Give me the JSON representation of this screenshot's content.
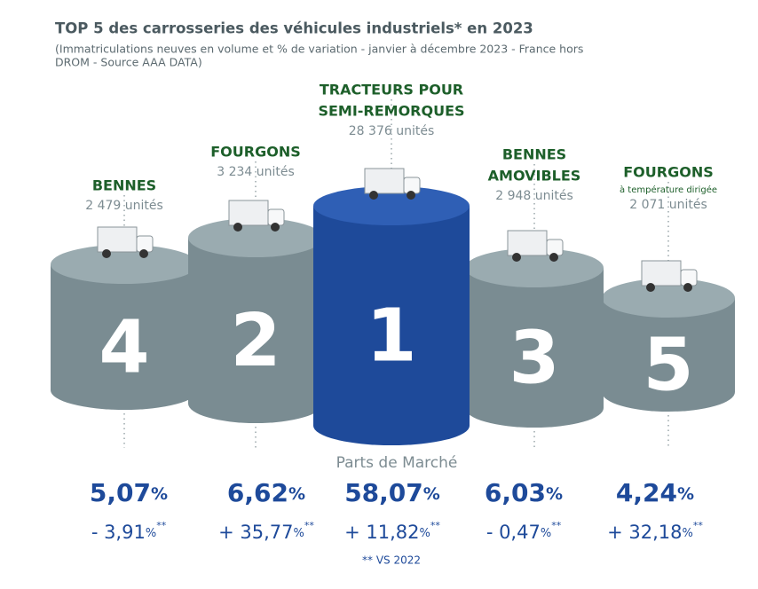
{
  "title": "TOP 5 des carrosseries des véhicules industriels* en 2023",
  "subtitle_lines": [
    "(Immatriculations neuves en volume et % de variation - janvier à décembre 2023 - France hors",
    "DROM - Source AAA DATA)"
  ],
  "podiums": [
    {
      "rank": "4",
      "name_lines": [
        "BENNES"
      ],
      "units": "2 479 unités",
      "share": "5,07",
      "share_unit": "%",
      "change": "- 3,91",
      "change_unit": "%",
      "change_mark": "**"
    },
    {
      "rank": "2",
      "name_lines": [
        "FOURGONS"
      ],
      "units": "3 234 unités",
      "share": "6,62",
      "share_unit": "%",
      "change": "+ 35,77",
      "change_unit": "%",
      "change_mark": "**"
    },
    {
      "rank": "1",
      "name_lines": [
        "TRACTEURS POUR",
        "SEMI-REMORQUES"
      ],
      "units": "28 376 unités",
      "share": "58,07",
      "share_unit": "%",
      "change": "+ 11,82",
      "change_unit": "%",
      "change_mark": "**"
    },
    {
      "rank": "3",
      "name_lines": [
        "BENNES",
        "AMOVIBLES"
      ],
      "units": "2 948 unités",
      "share": "6,03",
      "share_unit": "%",
      "change": "- 0,47",
      "change_unit": "%",
      "change_mark": "**"
    },
    {
      "rank": "5",
      "name_lines": [
        "FOURGONS"
      ],
      "sub": "à température dirigée",
      "units": "2 071 unités",
      "share": "4,24",
      "share_unit": "%",
      "change": "+ 32,18",
      "change_unit": "%",
      "change_mark": "**"
    }
  ],
  "share_title": "Parts de Marché",
  "footnote": "** VS 2022"
}
